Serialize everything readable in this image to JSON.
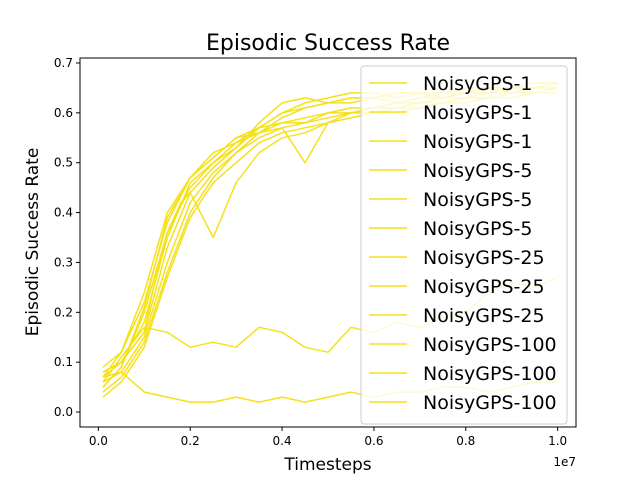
{
  "chart_data": {
    "type": "line",
    "title": "Episodic Success Rate",
    "xlabel": "Timesteps",
    "ylabel": "Episodic Success Rate",
    "x_offset_label": "1e7",
    "xlim": [
      -0.04,
      1.04
    ],
    "ylim": [
      -0.03,
      0.71
    ],
    "xticks": [
      0.0,
      0.2,
      0.4,
      0.6,
      0.8,
      1.0
    ],
    "xtick_labels": [
      "0.0",
      "0.2",
      "0.4",
      "0.6",
      "0.8",
      "1.0"
    ],
    "yticks": [
      0.0,
      0.1,
      0.2,
      0.3,
      0.4,
      0.5,
      0.6,
      0.7
    ],
    "ytick_labels": [
      "0.0",
      "0.1",
      "0.2",
      "0.3",
      "0.4",
      "0.5",
      "0.6",
      "0.7"
    ],
    "grid": false,
    "legend_position": "right",
    "line_color": "#f5e11b",
    "series": [
      {
        "name": "NoisyGPS-1",
        "x": [
          0.01,
          0.05,
          0.1,
          0.15,
          0.2,
          0.25,
          0.3,
          0.35,
          0.4,
          0.45,
          0.5,
          0.55,
          0.6,
          0.65,
          0.7,
          0.75,
          0.8,
          0.85,
          0.9,
          0.95,
          1.0
        ],
        "y": [
          0.08,
          0.1,
          0.18,
          0.35,
          0.46,
          0.5,
          0.54,
          0.56,
          0.58,
          0.58,
          0.6,
          0.6,
          0.61,
          0.61,
          0.62,
          0.62,
          0.63,
          0.63,
          0.64,
          0.64,
          0.65
        ]
      },
      {
        "name": "NoisyGPS-1",
        "x": [
          0.01,
          0.05,
          0.1,
          0.15,
          0.2,
          0.25,
          0.3,
          0.35,
          0.4,
          0.45,
          0.5,
          0.55,
          0.6,
          0.65,
          0.7,
          0.75,
          0.8,
          0.85,
          0.9,
          0.95,
          1.0
        ],
        "y": [
          0.06,
          0.08,
          0.15,
          0.3,
          0.42,
          0.48,
          0.52,
          0.55,
          0.57,
          0.58,
          0.59,
          0.6,
          0.6,
          0.61,
          0.62,
          0.63,
          0.63,
          0.64,
          0.64,
          0.65,
          0.65
        ]
      },
      {
        "name": "NoisyGPS-1",
        "x": [
          0.01,
          0.05,
          0.1,
          0.15,
          0.2,
          0.25,
          0.3,
          0.35,
          0.4,
          0.45,
          0.5,
          0.55,
          0.6,
          0.65,
          0.7,
          0.75,
          0.8,
          0.85,
          0.9,
          0.95,
          1.0
        ],
        "y": [
          0.07,
          0.12,
          0.22,
          0.38,
          0.47,
          0.51,
          0.55,
          0.56,
          0.57,
          0.5,
          0.58,
          0.6,
          0.61,
          0.62,
          0.62,
          0.63,
          0.64,
          0.64,
          0.65,
          0.65,
          0.66
        ]
      },
      {
        "name": "NoisyGPS-5",
        "x": [
          0.01,
          0.05,
          0.1,
          0.15,
          0.2,
          0.25,
          0.3,
          0.35,
          0.4,
          0.45,
          0.5,
          0.55,
          0.6,
          0.65,
          0.7,
          0.75,
          0.8,
          0.85,
          0.9,
          0.95,
          1.0
        ],
        "y": [
          0.05,
          0.09,
          0.2,
          0.36,
          0.45,
          0.5,
          0.53,
          0.57,
          0.6,
          0.62,
          0.63,
          0.64,
          0.64,
          0.63,
          0.64,
          0.63,
          0.64,
          0.64,
          0.65,
          0.65,
          0.65
        ]
      },
      {
        "name": "NoisyGPS-5",
        "x": [
          0.01,
          0.05,
          0.1,
          0.15,
          0.2,
          0.25,
          0.3,
          0.35,
          0.4,
          0.45,
          0.5,
          0.55,
          0.6,
          0.65,
          0.7,
          0.75,
          0.8,
          0.85,
          0.9,
          0.95,
          1.0
        ],
        "y": [
          0.08,
          0.1,
          0.16,
          0.33,
          0.44,
          0.49,
          0.53,
          0.58,
          0.62,
          0.63,
          0.62,
          0.62,
          0.63,
          0.64,
          0.64,
          0.63,
          0.64,
          0.65,
          0.65,
          0.64,
          0.65
        ]
      },
      {
        "name": "NoisyGPS-5",
        "x": [
          0.01,
          0.05,
          0.1,
          0.15,
          0.2,
          0.25,
          0.3,
          0.35,
          0.4,
          0.45,
          0.5,
          0.55,
          0.6,
          0.65,
          0.7,
          0.75,
          0.8,
          0.85,
          0.9,
          0.95,
          1.0
        ],
        "y": [
          0.04,
          0.07,
          0.14,
          0.28,
          0.4,
          0.47,
          0.52,
          0.56,
          0.59,
          0.61,
          0.62,
          0.63,
          0.63,
          0.62,
          0.63,
          0.64,
          0.64,
          0.65,
          0.64,
          0.65,
          0.66
        ]
      },
      {
        "name": "NoisyGPS-25",
        "x": [
          0.01,
          0.05,
          0.1,
          0.12,
          0.15,
          0.18,
          0.2,
          0.25,
          0.3,
          0.35,
          0.4,
          0.45,
          0.5,
          0.55,
          0.6,
          0.65,
          0.7,
          0.75,
          0.8,
          0.85,
          0.9,
          0.95,
          1.0
        ],
        "y": [
          0.07,
          0.1,
          0.16,
          0.25,
          0.36,
          0.42,
          0.44,
          0.35,
          0.46,
          0.52,
          0.55,
          0.56,
          0.58,
          0.59,
          0.6,
          0.61,
          0.61,
          0.62,
          0.63,
          0.63,
          0.64,
          0.64,
          0.65
        ]
      },
      {
        "name": "NoisyGPS-25",
        "x": [
          0.01,
          0.05,
          0.1,
          0.15,
          0.2,
          0.25,
          0.3,
          0.35,
          0.4,
          0.45,
          0.5,
          0.55,
          0.6,
          0.65,
          0.7,
          0.75,
          0.8,
          0.85,
          0.9,
          0.95,
          1.0
        ],
        "y": [
          0.06,
          0.11,
          0.17,
          0.16,
          0.13,
          0.14,
          0.13,
          0.17,
          0.16,
          0.13,
          0.12,
          0.17,
          0.16,
          0.18,
          0.17,
          0.19,
          0.2,
          0.24,
          0.26,
          0.25,
          0.27
        ]
      },
      {
        "name": "NoisyGPS-25",
        "x": [
          0.01,
          0.05,
          0.1,
          0.15,
          0.2,
          0.25,
          0.3,
          0.35,
          0.4,
          0.45,
          0.5,
          0.55,
          0.6,
          0.65,
          0.7,
          0.75,
          0.8,
          0.85,
          0.9,
          0.95,
          1.0
        ],
        "y": [
          0.07,
          0.08,
          0.04,
          0.03,
          0.02,
          0.02,
          0.03,
          0.02,
          0.03,
          0.02,
          0.03,
          0.04,
          0.03,
          0.04,
          0.04,
          0.05,
          0.05,
          0.04,
          0.05,
          0.06,
          0.06
        ]
      },
      {
        "name": "NoisyGPS-100",
        "x": [
          0.01,
          0.05,
          0.1,
          0.15,
          0.2,
          0.25,
          0.3,
          0.35,
          0.4,
          0.45,
          0.5,
          0.55,
          0.6,
          0.65,
          0.7,
          0.75,
          0.8,
          0.85,
          0.9,
          0.95,
          1.0
        ],
        "y": [
          0.05,
          0.09,
          0.21,
          0.39,
          0.47,
          0.51,
          0.55,
          0.57,
          0.58,
          0.59,
          0.6,
          0.61,
          0.61,
          0.62,
          0.63,
          0.63,
          0.64,
          0.64,
          0.65,
          0.65,
          0.66
        ]
      },
      {
        "name": "NoisyGPS-100",
        "x": [
          0.01,
          0.05,
          0.1,
          0.15,
          0.2,
          0.25,
          0.3,
          0.35,
          0.4,
          0.45,
          0.5,
          0.55,
          0.6,
          0.65,
          0.7,
          0.75,
          0.8,
          0.85,
          0.9,
          0.95,
          1.0
        ],
        "y": [
          0.09,
          0.12,
          0.24,
          0.4,
          0.47,
          0.52,
          0.54,
          0.57,
          0.6,
          0.61,
          0.62,
          0.63,
          0.63,
          0.64,
          0.64,
          0.64,
          0.65,
          0.65,
          0.65,
          0.66,
          0.66
        ]
      },
      {
        "name": "NoisyGPS-100",
        "x": [
          0.01,
          0.05,
          0.1,
          0.15,
          0.2,
          0.25,
          0.3,
          0.35,
          0.4,
          0.45,
          0.5,
          0.55,
          0.6,
          0.65,
          0.7,
          0.75,
          0.8,
          0.85,
          0.9,
          0.95,
          1.0
        ],
        "y": [
          0.03,
          0.06,
          0.13,
          0.27,
          0.39,
          0.46,
          0.5,
          0.54,
          0.56,
          0.57,
          0.58,
          0.59,
          0.6,
          0.6,
          0.61,
          0.62,
          0.62,
          0.63,
          0.63,
          0.64,
          0.64
        ]
      }
    ]
  }
}
